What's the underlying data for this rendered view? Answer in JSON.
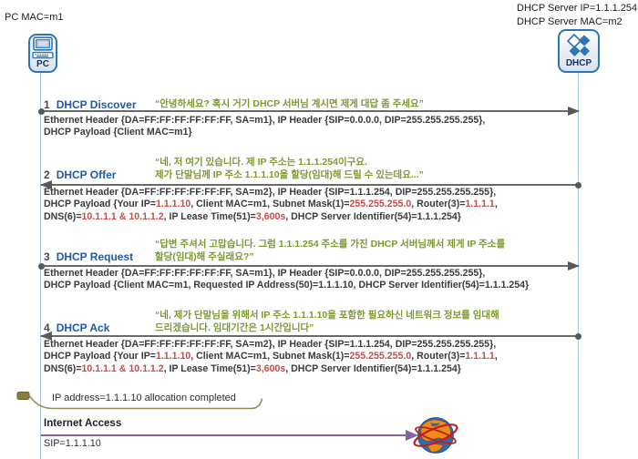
{
  "colors": {
    "title_blue": "#1f5aa8",
    "quote_green": "#7a9a30",
    "value_red": "#c0504d",
    "text_dark": "#3b3b3b",
    "arrow_gray": "#595959",
    "lifeline_blue": "#a9c7e7",
    "box_border": "#2e75b6",
    "purple": "#8064a2",
    "callout_tan": "#948a54"
  },
  "actors": {
    "pc": {
      "label_above": "PC MAC=m1",
      "name": "PC",
      "icon": "computer-icon"
    },
    "server": {
      "label_line1": "DHCP Server IP=1.1.1.254",
      "label_line2": "DHCP Server MAC=m2",
      "name": "DHCP",
      "icon": "dhcp-diamonds-icon"
    }
  },
  "messages": [
    {
      "num": "1",
      "title": "DHCP Discover",
      "direction": "to-server",
      "quote_lines": [
        "“안녕하세요? 혹시 거기 DHCP 서버님 계시면 제게 대답 좀 주세요”"
      ],
      "payload": [
        [
          {
            "t": "Ethernet Header {DA=FF:FF:FF:FF:FF:FF, SA=m1}, IP Header {SIP=0.0.0.0, DIP=255.255.255.255},",
            "c": "dark"
          }
        ],
        [
          {
            "t": "DHCP Payload {Client MAC=m1}",
            "c": "dark"
          }
        ]
      ]
    },
    {
      "num": "2",
      "title": "DHCP Offer",
      "direction": "to-client",
      "quote_lines": [
        "“네, 저 여기 있습니다. 제 IP 주소는 1.1.1.254이구요.",
        "제가 단말님께 IP 주소 1.1.1.10을 할당(임대)해 드릴 수 있는데요...”"
      ],
      "payload": [
        [
          {
            "t": "Ethernet Header {DA=FF:FF:FF:FF:FF:FF, SA=m2}, IP Header {SIP=1.1.1.254, DIP=255.255.255.255},",
            "c": "dark"
          }
        ],
        [
          {
            "t": "DHCP Payload {Your IP=",
            "c": "dark"
          },
          {
            "t": "1.1.1.10",
            "c": "red"
          },
          {
            "t": ", Client MAC=m1, Subnet Mask(1)=",
            "c": "dark"
          },
          {
            "t": "255.255.255.0",
            "c": "red"
          },
          {
            "t": ", Router(3)=",
            "c": "dark"
          },
          {
            "t": "1.1.1.1",
            "c": "red"
          },
          {
            "t": ",",
            "c": "dark"
          }
        ],
        [
          {
            "t": "DNS(6)=",
            "c": "dark"
          },
          {
            "t": "10.1.1.1 & 10.1.1.2",
            "c": "red"
          },
          {
            "t": ", IP Lease Time(51)=",
            "c": "dark"
          },
          {
            "t": "3,600s",
            "c": "red"
          },
          {
            "t": ", DHCP Server Identifier(54)=1.1.1.254}",
            "c": "dark"
          }
        ]
      ]
    },
    {
      "num": "3",
      "title": "DHCP Request",
      "direction": "to-server",
      "quote_lines": [
        "“답변 주셔서 고맙습니다. 그럼 1.1.1.254 주소를 가진 DHCP 서버님께서 제게 IP 주소를",
        "할당(임대)해 주실래요?”"
      ],
      "payload": [
        [
          {
            "t": "Ethernet Header {DA=FF:FF:FF:FF:FF:FF, SA=m1}, IP Header {SIP=0.0.0.0, DIP=255.255.255.255},",
            "c": "dark"
          }
        ],
        [
          {
            "t": "DHCP Payload {Client MAC=m1, Requested IP Address(50)=1.1.1.10, DHCP Server Identifier(54)=1.1.1.254}",
            "c": "dark"
          }
        ]
      ]
    },
    {
      "num": "4",
      "title": "DHCP Ack",
      "direction": "to-client",
      "quote_lines": [
        "“네, 제가 단말님을 위해서 IP 주소 1.1.1.10을 포함한 필요하신 네트워크 정보를 임대해",
        "드리겠습니다. 임대기간은 1시간입니다”"
      ],
      "payload": [
        [
          {
            "t": "Ethernet Header {DA=FF:FF:FF:FF:FF:FF, SA=m2}, IP Header {SIP=1.1.1.254, DIP=255.255.255.255},",
            "c": "dark"
          }
        ],
        [
          {
            "t": "DHCP Payload {Your IP=",
            "c": "dark"
          },
          {
            "t": "1.1.1.10",
            "c": "red"
          },
          {
            "t": ", Client MAC=m1, Subnet Mask(1)=",
            "c": "dark"
          },
          {
            "t": "255.255.255.0",
            "c": "red"
          },
          {
            "t": ", Router(3)=",
            "c": "dark"
          },
          {
            "t": "1.1.1.1",
            "c": "red"
          },
          {
            "t": ",",
            "c": "dark"
          }
        ],
        [
          {
            "t": "DNS(6)=",
            "c": "dark"
          },
          {
            "t": "10.1.1.1 & 10.1.1.2",
            "c": "red"
          },
          {
            "t": ", IP Lease Time(51)=",
            "c": "dark"
          },
          {
            "t": "3,600s",
            "c": "red"
          },
          {
            "t": ", DHCP Server Identifier(54)=1.1.1.254}",
            "c": "dark"
          }
        ]
      ]
    }
  ],
  "callout": {
    "text": "IP address=1.1.1.10 allocation completed",
    "icon": "lease-marker-icon"
  },
  "internet": {
    "title": "Internet Access",
    "subtitle": "SIP=1.1.1.10",
    "icon": "internet-globe-icon"
  }
}
